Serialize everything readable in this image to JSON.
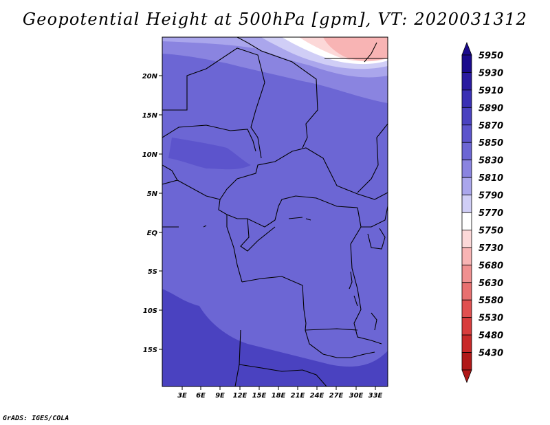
{
  "title": "Geopotential Height at 500hPa [gpm], VT: 2020031312",
  "credit": "GrADS: IGES/COLA",
  "lat_ticks": [
    "20N",
    "15N",
    "10N",
    "5N",
    "EQ",
    "5S",
    "10S",
    "15S"
  ],
  "lon_ticks": [
    "3E",
    "6E",
    "9E",
    "12E",
    "15E",
    "18E",
    "21E",
    "24E",
    "27E",
    "30E",
    "33E"
  ],
  "colorbar": {
    "labels": [
      "5950",
      "5930",
      "5910",
      "5890",
      "5870",
      "5850",
      "5830",
      "5810",
      "5790",
      "5770",
      "5750",
      "5730",
      "5680",
      "5630",
      "5580",
      "5530",
      "5480",
      "5430"
    ],
    "colors": [
      "#1a0a8c",
      "#2a1aa0",
      "#3a30b4",
      "#4a42c0",
      "#5c54cc",
      "#6c66d4",
      "#8a84e0",
      "#aaa6ec",
      "#d0ceF6",
      "#ffffff",
      "#fcd8d8",
      "#f8b4b4",
      "#f09090",
      "#e87070",
      "#e05050",
      "#d83c3c",
      "#c82828",
      "#b01818"
    ]
  },
  "field_colors": {
    "c5950": "#4a42c0",
    "c5890": "#5c54cc",
    "c5870": "#6c66d4",
    "c5850": "#8a84e0",
    "c5830": "#aaa6ec",
    "c5810": "#d0cef6",
    "c5790": "#ffffff",
    "c5750": "#fcd8d8",
    "c5730": "#f8b4b4"
  }
}
